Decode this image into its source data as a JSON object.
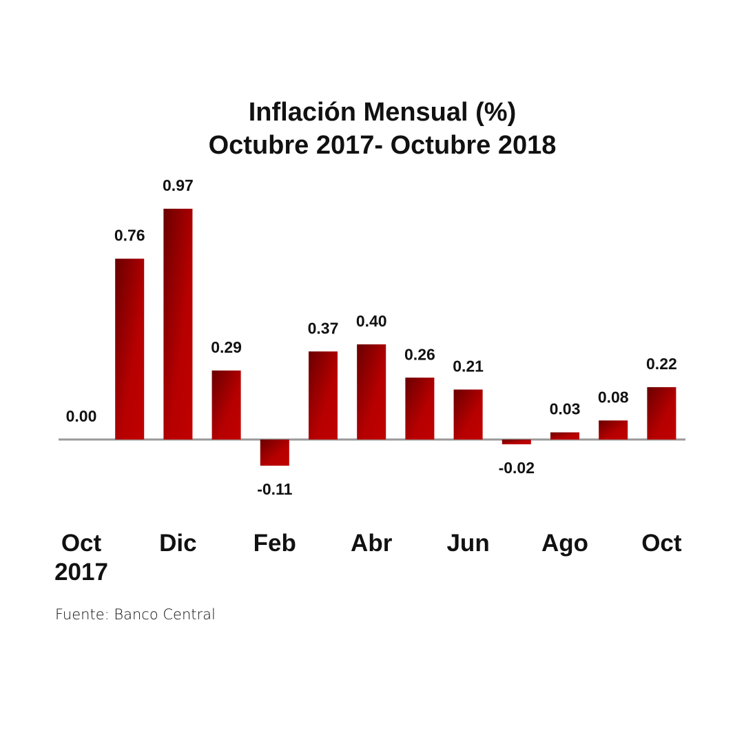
{
  "chart_data": {
    "type": "bar",
    "title": "Inflación Mensual (%)",
    "subtitle": "Octubre 2017- Octubre 2018",
    "categories": [
      "Oct 2017",
      null,
      "Dic",
      null,
      "Feb",
      null,
      "Abr",
      null,
      "Jun",
      null,
      "Ago",
      null,
      "Oct"
    ],
    "values": [
      0.0,
      0.76,
      0.97,
      0.29,
      -0.11,
      0.37,
      0.4,
      0.26,
      0.21,
      -0.02,
      0.03,
      0.08,
      0.22
    ],
    "value_labels": [
      "0.00",
      "0.76",
      "0.97",
      "0.29",
      "-0.11",
      "0.37",
      "0.40",
      "0.26",
      "0.21",
      "-0.02",
      "0.03",
      "0.08",
      "0.22"
    ],
    "color": "#c00000",
    "source": "Fuente: Banco Central"
  }
}
